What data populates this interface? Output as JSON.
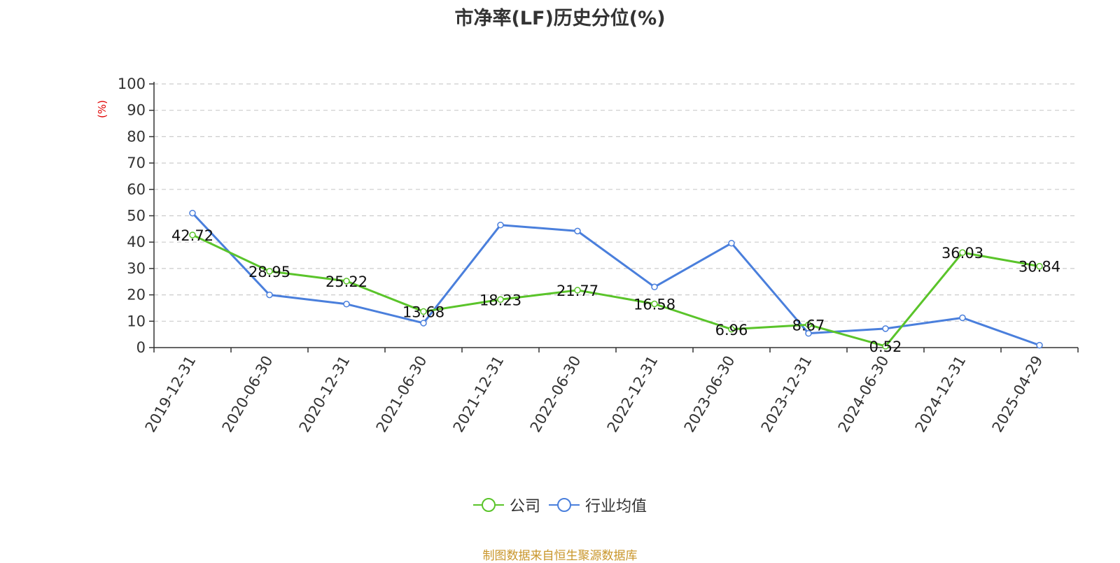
{
  "chart_data": {
    "type": "line",
    "title": "市净率(LF)历史分位(%)",
    "ylabel": "(%)",
    "ylim": [
      0,
      100
    ],
    "yticks": [
      0,
      10,
      20,
      30,
      40,
      50,
      60,
      70,
      80,
      90,
      100
    ],
    "grid": true,
    "legend_position": "bottom",
    "categories": [
      "2019-12-31",
      "2020-06-30",
      "2020-12-31",
      "2021-06-30",
      "2021-12-31",
      "2022-06-30",
      "2022-12-31",
      "2023-06-30",
      "2023-12-31",
      "2024-06-30",
      "2024-12-31",
      "2025-04-29"
    ],
    "series": [
      {
        "name": "公司",
        "color": "#5ac42a",
        "values": [
          42.72,
          28.95,
          25.22,
          13.68,
          18.23,
          21.77,
          16.58,
          6.96,
          8.67,
          0.52,
          36.03,
          30.84
        ],
        "data_labels": [
          "42.72",
          "28.95",
          "25.22",
          "13.68",
          "18.23",
          "21.77",
          "16.58",
          "6.96",
          "8.67",
          "0.52",
          "36.03",
          "30.84"
        ]
      },
      {
        "name": "行业均值",
        "color": "#4a7fdc",
        "values": [
          51,
          20,
          16.5,
          9.3,
          46.5,
          44.2,
          23,
          39.6,
          5.4,
          7.2,
          11.3,
          0.9
        ]
      }
    ]
  },
  "source_note": "制图数据来自恒生聚源数据库"
}
